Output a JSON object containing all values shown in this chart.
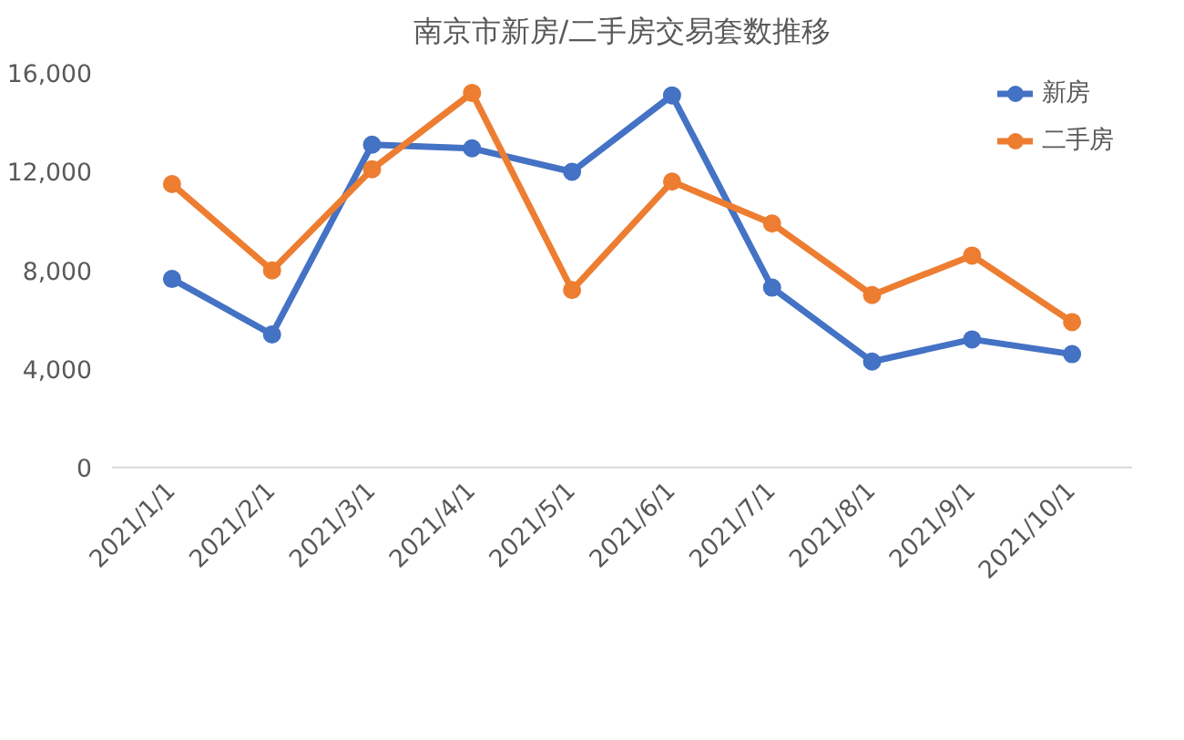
{
  "chart_data": {
    "type": "line",
    "title": "南京市新房/二手房交易套数推移",
    "categories": [
      "2021/1/1",
      "2021/2/1",
      "2021/3/1",
      "2021/4/1",
      "2021/5/1",
      "2021/6/1",
      "2021/7/1",
      "2021/8/1",
      "2021/9/1",
      "2021/10/1"
    ],
    "series": [
      {
        "name": "新房",
        "color": "#4472c4",
        "values": [
          7650,
          5400,
          13100,
          12950,
          12000,
          15100,
          7300,
          4300,
          5200,
          4600
        ]
      },
      {
        "name": "二手房",
        "color": "#ed7d31",
        "values": [
          11500,
          8000,
          12100,
          15200,
          7200,
          11600,
          9900,
          7000,
          8600,
          5900
        ]
      }
    ],
    "ylim": [
      0,
      16000
    ],
    "yticks": [
      0,
      {
        "value": 4000,
        "label": "4,000"
      },
      {
        "value": 8000,
        "label": "8,000"
      },
      {
        "value": 12000,
        "label": "12,000"
      },
      {
        "value": 16000,
        "label": "16,000"
      }
    ],
    "grid": false,
    "legend": "top right",
    "marker": "circle",
    "line_style": "solid"
  }
}
